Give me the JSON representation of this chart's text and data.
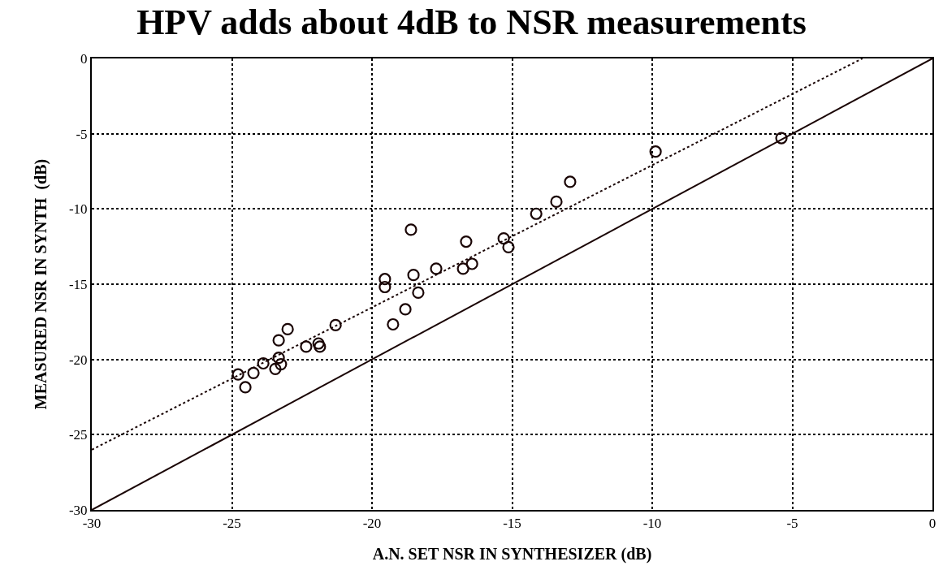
{
  "chart_data": {
    "type": "scatter",
    "title": "HPV adds about 4dB to NSR measurements",
    "xlabel": "A.N. SET NSR IN SYNTHESIZER (dB)",
    "ylabel": "MEASURED NSR IN SYNTH  (dB)",
    "xlim": [
      -30,
      0
    ],
    "ylim": [
      -30,
      0
    ],
    "xticks": [
      -30,
      -25,
      -20,
      -15,
      -10,
      -5,
      0
    ],
    "yticks": [
      -30,
      -25,
      -20,
      -15,
      -10,
      -5,
      0
    ],
    "grid": true,
    "legend": false,
    "series": [
      {
        "color": "#1a0505",
        "marker": "circle",
        "x": [
          -24.78,
          -24.52,
          -24.23,
          -23.88,
          -23.45,
          -23.33,
          -23.33,
          -23.25,
          -23.01,
          -22.35,
          -21.91,
          -21.86,
          -21.3,
          -19.54,
          -19.54,
          -19.25,
          -18.81,
          -18.61,
          -18.52,
          -18.35,
          -17.71,
          -16.75,
          -16.64,
          -16.43,
          -15.3,
          -15.13,
          -14.14,
          -13.42,
          -12.93,
          -9.88,
          -5.39
        ],
        "values": [
          -21.0,
          -21.85,
          -20.9,
          -20.26,
          -20.63,
          -18.73,
          -19.89,
          -20.32,
          -17.99,
          -19.15,
          -18.94,
          -19.15,
          -17.72,
          -14.66,
          -15.19,
          -17.67,
          -16.67,
          -11.38,
          -14.39,
          -15.56,
          -13.97,
          -13.97,
          -12.17,
          -13.65,
          -11.96,
          -12.54,
          -10.32,
          -9.52,
          -8.2,
          -6.19,
          -5.29
        ]
      },
      {
        "type": "line",
        "color": "#1a0505",
        "line_style": "solid",
        "x": [
          -30,
          0
        ],
        "values": [
          -30,
          0
        ]
      },
      {
        "type": "line",
        "color": "#1a0505",
        "line_style": "dotted",
        "x": [
          -30,
          -2.5
        ],
        "values": [
          -26,
          0
        ]
      }
    ]
  }
}
